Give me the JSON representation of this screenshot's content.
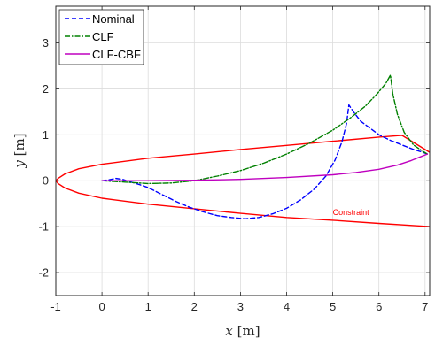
{
  "chart_data": {
    "type": "line",
    "title": "",
    "xlabel": {
      "var": "x",
      "unit": "[m]"
    },
    "ylabel": {
      "var": "y",
      "unit": "[m]"
    },
    "xlim": [
      -1,
      7.1
    ],
    "ylim": [
      -2.5,
      3.8
    ],
    "xticks": [
      -1,
      0,
      1,
      2,
      3,
      4,
      5,
      6,
      7
    ],
    "yticks": [
      -2,
      -1,
      0,
      1,
      2,
      3
    ],
    "xtick_labels": [
      "-1",
      "0",
      "1",
      "2",
      "3",
      "4",
      "5",
      "6",
      "7"
    ],
    "ytick_labels": [
      "-2",
      "-1",
      "0",
      "1",
      "2",
      "3"
    ],
    "grid": true,
    "legend_position": "top-left",
    "series": [
      {
        "name": "Nominal",
        "color": "#0000ff",
        "style": "dashed",
        "points": [
          [
            0,
            0
          ],
          [
            0.15,
            0.02
          ],
          [
            0.3,
            0.05
          ],
          [
            0.45,
            0.03
          ],
          [
            0.6,
            -0.02
          ],
          [
            0.8,
            -0.08
          ],
          [
            1.0,
            -0.15
          ],
          [
            1.3,
            -0.3
          ],
          [
            1.6,
            -0.45
          ],
          [
            1.9,
            -0.58
          ],
          [
            2.2,
            -0.68
          ],
          [
            2.5,
            -0.76
          ],
          [
            2.8,
            -0.8
          ],
          [
            3.1,
            -0.83
          ],
          [
            3.4,
            -0.8
          ],
          [
            3.7,
            -0.72
          ],
          [
            4.0,
            -0.6
          ],
          [
            4.3,
            -0.42
          ],
          [
            4.6,
            -0.18
          ],
          [
            4.85,
            0.1
          ],
          [
            5.05,
            0.45
          ],
          [
            5.2,
            0.85
          ],
          [
            5.3,
            1.25
          ],
          [
            5.35,
            1.65
          ],
          [
            5.45,
            1.5
          ],
          [
            5.6,
            1.3
          ],
          [
            5.8,
            1.15
          ],
          [
            6.0,
            1.0
          ],
          [
            6.25,
            0.88
          ],
          [
            6.5,
            0.78
          ],
          [
            6.75,
            0.68
          ],
          [
            6.95,
            0.62
          ],
          [
            7.05,
            0.58
          ]
        ]
      },
      {
        "name": "CLF",
        "color": "#008000",
        "style": "dash-dot",
        "points": [
          [
            0,
            0
          ],
          [
            0.5,
            -0.03
          ],
          [
            1.0,
            -0.06
          ],
          [
            1.5,
            -0.05
          ],
          [
            2.0,
            0.0
          ],
          [
            2.5,
            0.1
          ],
          [
            3.0,
            0.22
          ],
          [
            3.5,
            0.38
          ],
          [
            4.0,
            0.58
          ],
          [
            4.5,
            0.82
          ],
          [
            5.0,
            1.1
          ],
          [
            5.4,
            1.38
          ],
          [
            5.7,
            1.62
          ],
          [
            5.95,
            1.88
          ],
          [
            6.15,
            2.12
          ],
          [
            6.25,
            2.3
          ],
          [
            6.3,
            1.9
          ],
          [
            6.4,
            1.45
          ],
          [
            6.55,
            1.05
          ],
          [
            6.75,
            0.78
          ],
          [
            6.95,
            0.64
          ],
          [
            7.05,
            0.58
          ]
        ]
      },
      {
        "name": "CLF-CBF",
        "color": "#bf00bf",
        "style": "solid",
        "points": [
          [
            0,
            0
          ],
          [
            1.0,
            0.0
          ],
          [
            2.0,
            0.01
          ],
          [
            3.0,
            0.03
          ],
          [
            4.0,
            0.07
          ],
          [
            5.0,
            0.13
          ],
          [
            5.5,
            0.18
          ],
          [
            6.0,
            0.25
          ],
          [
            6.4,
            0.34
          ],
          [
            6.7,
            0.44
          ],
          [
            6.9,
            0.52
          ],
          [
            7.05,
            0.58
          ]
        ]
      },
      {
        "name": "Constraint",
        "color": "#ff0000",
        "style": "solid",
        "points": [
          [
            7.1,
            0.62
          ],
          [
            6.5,
            0.99
          ],
          [
            6.0,
            0.95
          ],
          [
            5.0,
            0.86
          ],
          [
            4.0,
            0.77
          ],
          [
            3.0,
            0.68
          ],
          [
            2.0,
            0.58
          ],
          [
            1.0,
            0.49
          ],
          [
            0.0,
            0.36
          ],
          [
            -0.5,
            0.26
          ],
          [
            -0.8,
            0.15
          ],
          [
            -0.95,
            0.05
          ],
          [
            -1.0,
            0.0
          ],
          [
            -0.95,
            -0.06
          ],
          [
            -0.8,
            -0.16
          ],
          [
            -0.5,
            -0.27
          ],
          [
            0.0,
            -0.38
          ],
          [
            1.0,
            -0.51
          ],
          [
            2.0,
            -0.61
          ],
          [
            3.0,
            -0.71
          ],
          [
            4.0,
            -0.8
          ],
          [
            5.0,
            -0.86
          ],
          [
            6.0,
            -0.93
          ],
          [
            7.1,
            -1.0
          ]
        ]
      }
    ],
    "annotations": [
      {
        "text": "Constraint",
        "x": 5.0,
        "y": -0.75,
        "color": "#ff0000"
      }
    ]
  }
}
